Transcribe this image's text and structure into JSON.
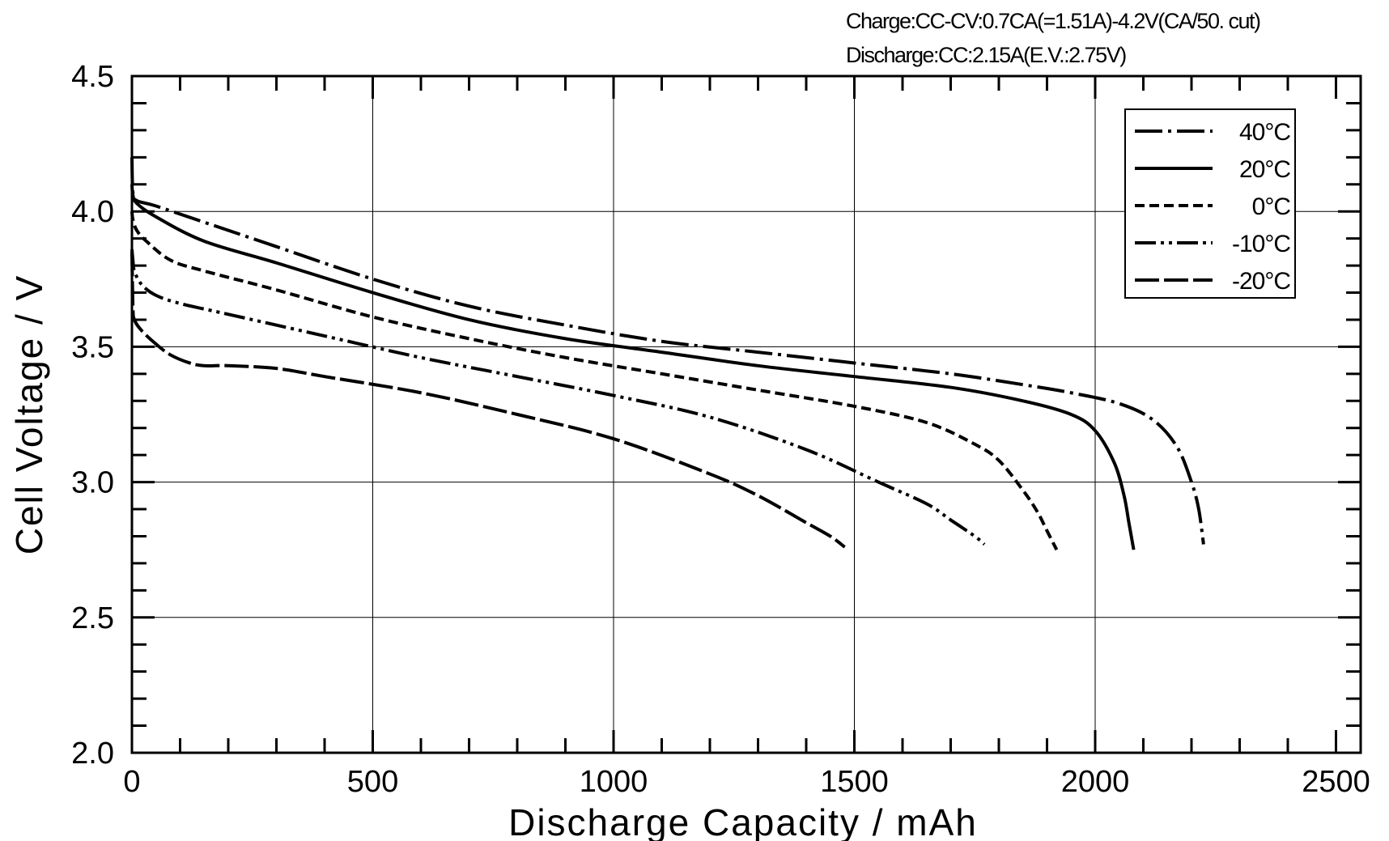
{
  "chart_data": {
    "type": "line",
    "title": "",
    "notes": [
      "Charge:CC-CV:0.7CA(=1.51A)-4.2V(CA/50.  cut)",
      "Discharge:CC:2.15A(E.V.:2.75V)"
    ],
    "xlabel": "Discharge  Capacity  /  mAh",
    "ylabel": "Cell  Voltage  /  V",
    "xlim": [
      0,
      2500
    ],
    "ylim": [
      2.0,
      4.5
    ],
    "xticks": [
      "0",
      "500",
      "1000",
      "1500",
      "2000",
      "2500"
    ],
    "yticks": [
      "2.0",
      "2.5",
      "3.0",
      "3.5",
      "4.0",
      "4.5"
    ],
    "grid": true,
    "legend_position": "top-right",
    "series": [
      {
        "name": "40°C",
        "dash": "dash-dot",
        "x": [
          0,
          2,
          10,
          50,
          150,
          300,
          500,
          700,
          900,
          1100,
          1300,
          1500,
          1700,
          1850,
          1950,
          2050,
          2120,
          2170,
          2200,
          2215,
          2225
        ],
        "y": [
          4.2,
          4.07,
          4.04,
          4.02,
          3.96,
          3.87,
          3.75,
          3.65,
          3.58,
          3.52,
          3.48,
          3.44,
          3.4,
          3.36,
          3.33,
          3.29,
          3.23,
          3.13,
          3.0,
          2.9,
          2.77
        ]
      },
      {
        "name": "20°C",
        "dash": "solid",
        "x": [
          0,
          2,
          10,
          50,
          150,
          300,
          500,
          700,
          900,
          1100,
          1300,
          1500,
          1700,
          1850,
          1950,
          2000,
          2040,
          2060,
          2070,
          2080
        ],
        "y": [
          4.1,
          4.06,
          4.03,
          3.98,
          3.89,
          3.81,
          3.7,
          3.6,
          3.53,
          3.48,
          3.43,
          3.39,
          3.35,
          3.3,
          3.25,
          3.19,
          3.07,
          2.95,
          2.85,
          2.75
        ]
      },
      {
        "name": "0°C",
        "dash": "dash",
        "x": [
          0,
          2,
          10,
          30,
          80,
          150,
          300,
          500,
          700,
          900,
          1100,
          1300,
          1500,
          1650,
          1750,
          1800,
          1850,
          1880,
          1900,
          1920
        ],
        "y": [
          4.0,
          3.97,
          3.93,
          3.89,
          3.82,
          3.78,
          3.71,
          3.61,
          3.53,
          3.46,
          3.4,
          3.34,
          3.28,
          3.22,
          3.14,
          3.08,
          2.97,
          2.89,
          2.82,
          2.75
        ]
      },
      {
        "name": "-10°C",
        "dash": "dash-dot-dot",
        "x": [
          0,
          2,
          5,
          20,
          50,
          100,
          200,
          400,
          600,
          800,
          1000,
          1200,
          1400,
          1550,
          1650,
          1700,
          1750,
          1770
        ],
        "y": [
          3.86,
          3.82,
          3.78,
          3.73,
          3.69,
          3.66,
          3.62,
          3.54,
          3.46,
          3.39,
          3.32,
          3.24,
          3.12,
          3.0,
          2.92,
          2.86,
          2.8,
          2.77
        ]
      },
      {
        "name": "-20°C",
        "dash": "long-dash",
        "x": [
          0,
          2,
          5,
          20,
          50,
          80,
          120,
          150,
          200,
          300,
          400,
          600,
          800,
          1000,
          1200,
          1300,
          1400,
          1450,
          1480
        ],
        "y": [
          3.85,
          3.65,
          3.6,
          3.56,
          3.51,
          3.47,
          3.44,
          3.43,
          3.43,
          3.42,
          3.39,
          3.33,
          3.25,
          3.16,
          3.03,
          2.95,
          2.85,
          2.8,
          2.76
        ]
      }
    ]
  }
}
